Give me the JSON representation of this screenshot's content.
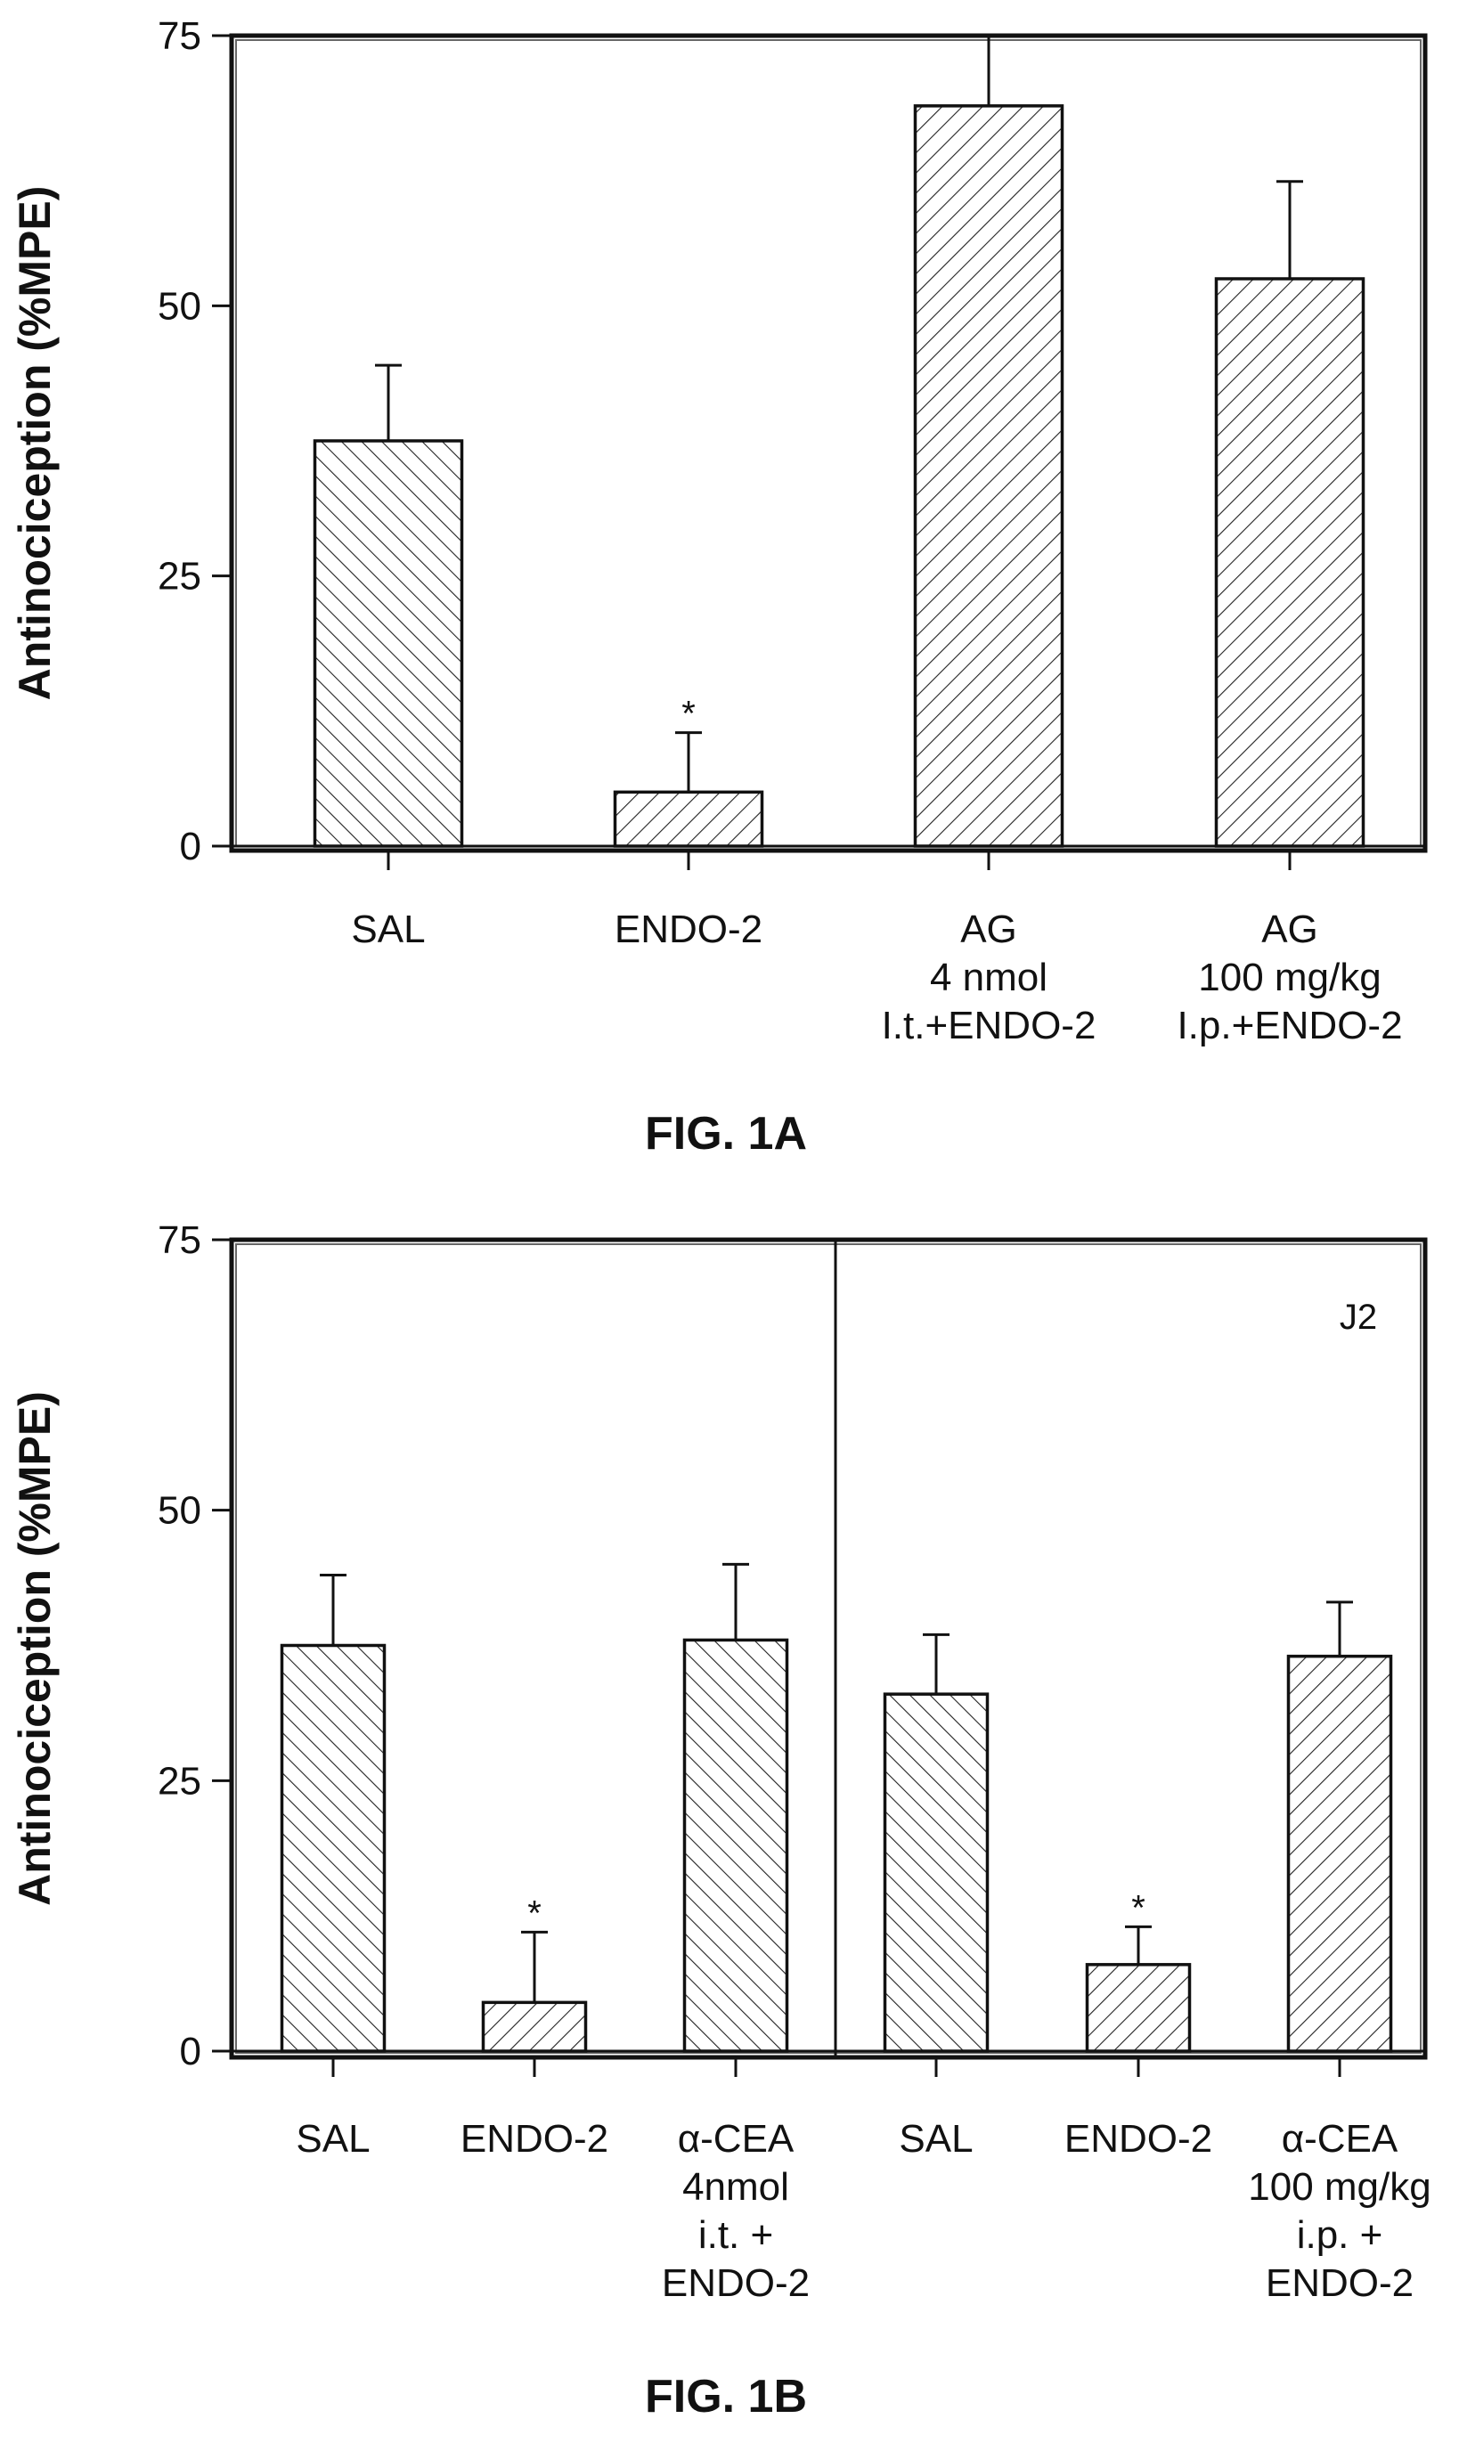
{
  "chart_data": [
    {
      "type": "bar",
      "title": "FIG. 1A",
      "ylabel": "Antinociception (%MPE)",
      "xlabel": "",
      "ylim": [
        0,
        75
      ],
      "yticks": [
        "0",
        "25",
        "50",
        "75"
      ],
      "grid": false,
      "categories": [
        [
          "SAL"
        ],
        [
          "ENDO-2"
        ],
        [
          "AG",
          "4 nmol",
          "I.t.+ENDO-2"
        ],
        [
          "AG",
          "100 mg/kg",
          "I.p.+ENDO-2"
        ]
      ],
      "values": [
        37.5,
        5,
        68.5,
        52.5
      ],
      "errors": [
        7,
        5.5,
        12,
        9
      ],
      "significance": [
        "",
        "*",
        "",
        ""
      ],
      "hatch": [
        "back",
        "fwd",
        "fwd",
        "fwd"
      ]
    },
    {
      "type": "bar",
      "title": "FIG. 1B",
      "ylabel": "Antinociception (%MPE)",
      "xlabel": "",
      "ylim": [
        0,
        75
      ],
      "yticks": [
        "0",
        "25",
        "50",
        "75"
      ],
      "grid": false,
      "panel_annotation": "J2",
      "categories": [
        [
          "SAL"
        ],
        [
          "ENDO-2"
        ],
        [
          "α-CEA",
          "4nmol",
          "i.t. +",
          "ENDO-2"
        ],
        [
          "SAL"
        ],
        [
          "ENDO-2"
        ],
        [
          "α-CEA",
          "100 mg/kg",
          "i.p. +",
          "ENDO-2"
        ]
      ],
      "values": [
        37.5,
        4.5,
        38,
        33,
        8,
        36.5
      ],
      "errors": [
        6.5,
        6.5,
        7,
        5.5,
        3.5,
        5
      ],
      "significance": [
        "",
        "*",
        "",
        "",
        "*",
        ""
      ],
      "hatch": [
        "back",
        "fwd",
        "back",
        "back",
        "fwd",
        "fwd"
      ],
      "divider_after_index": 2
    }
  ]
}
